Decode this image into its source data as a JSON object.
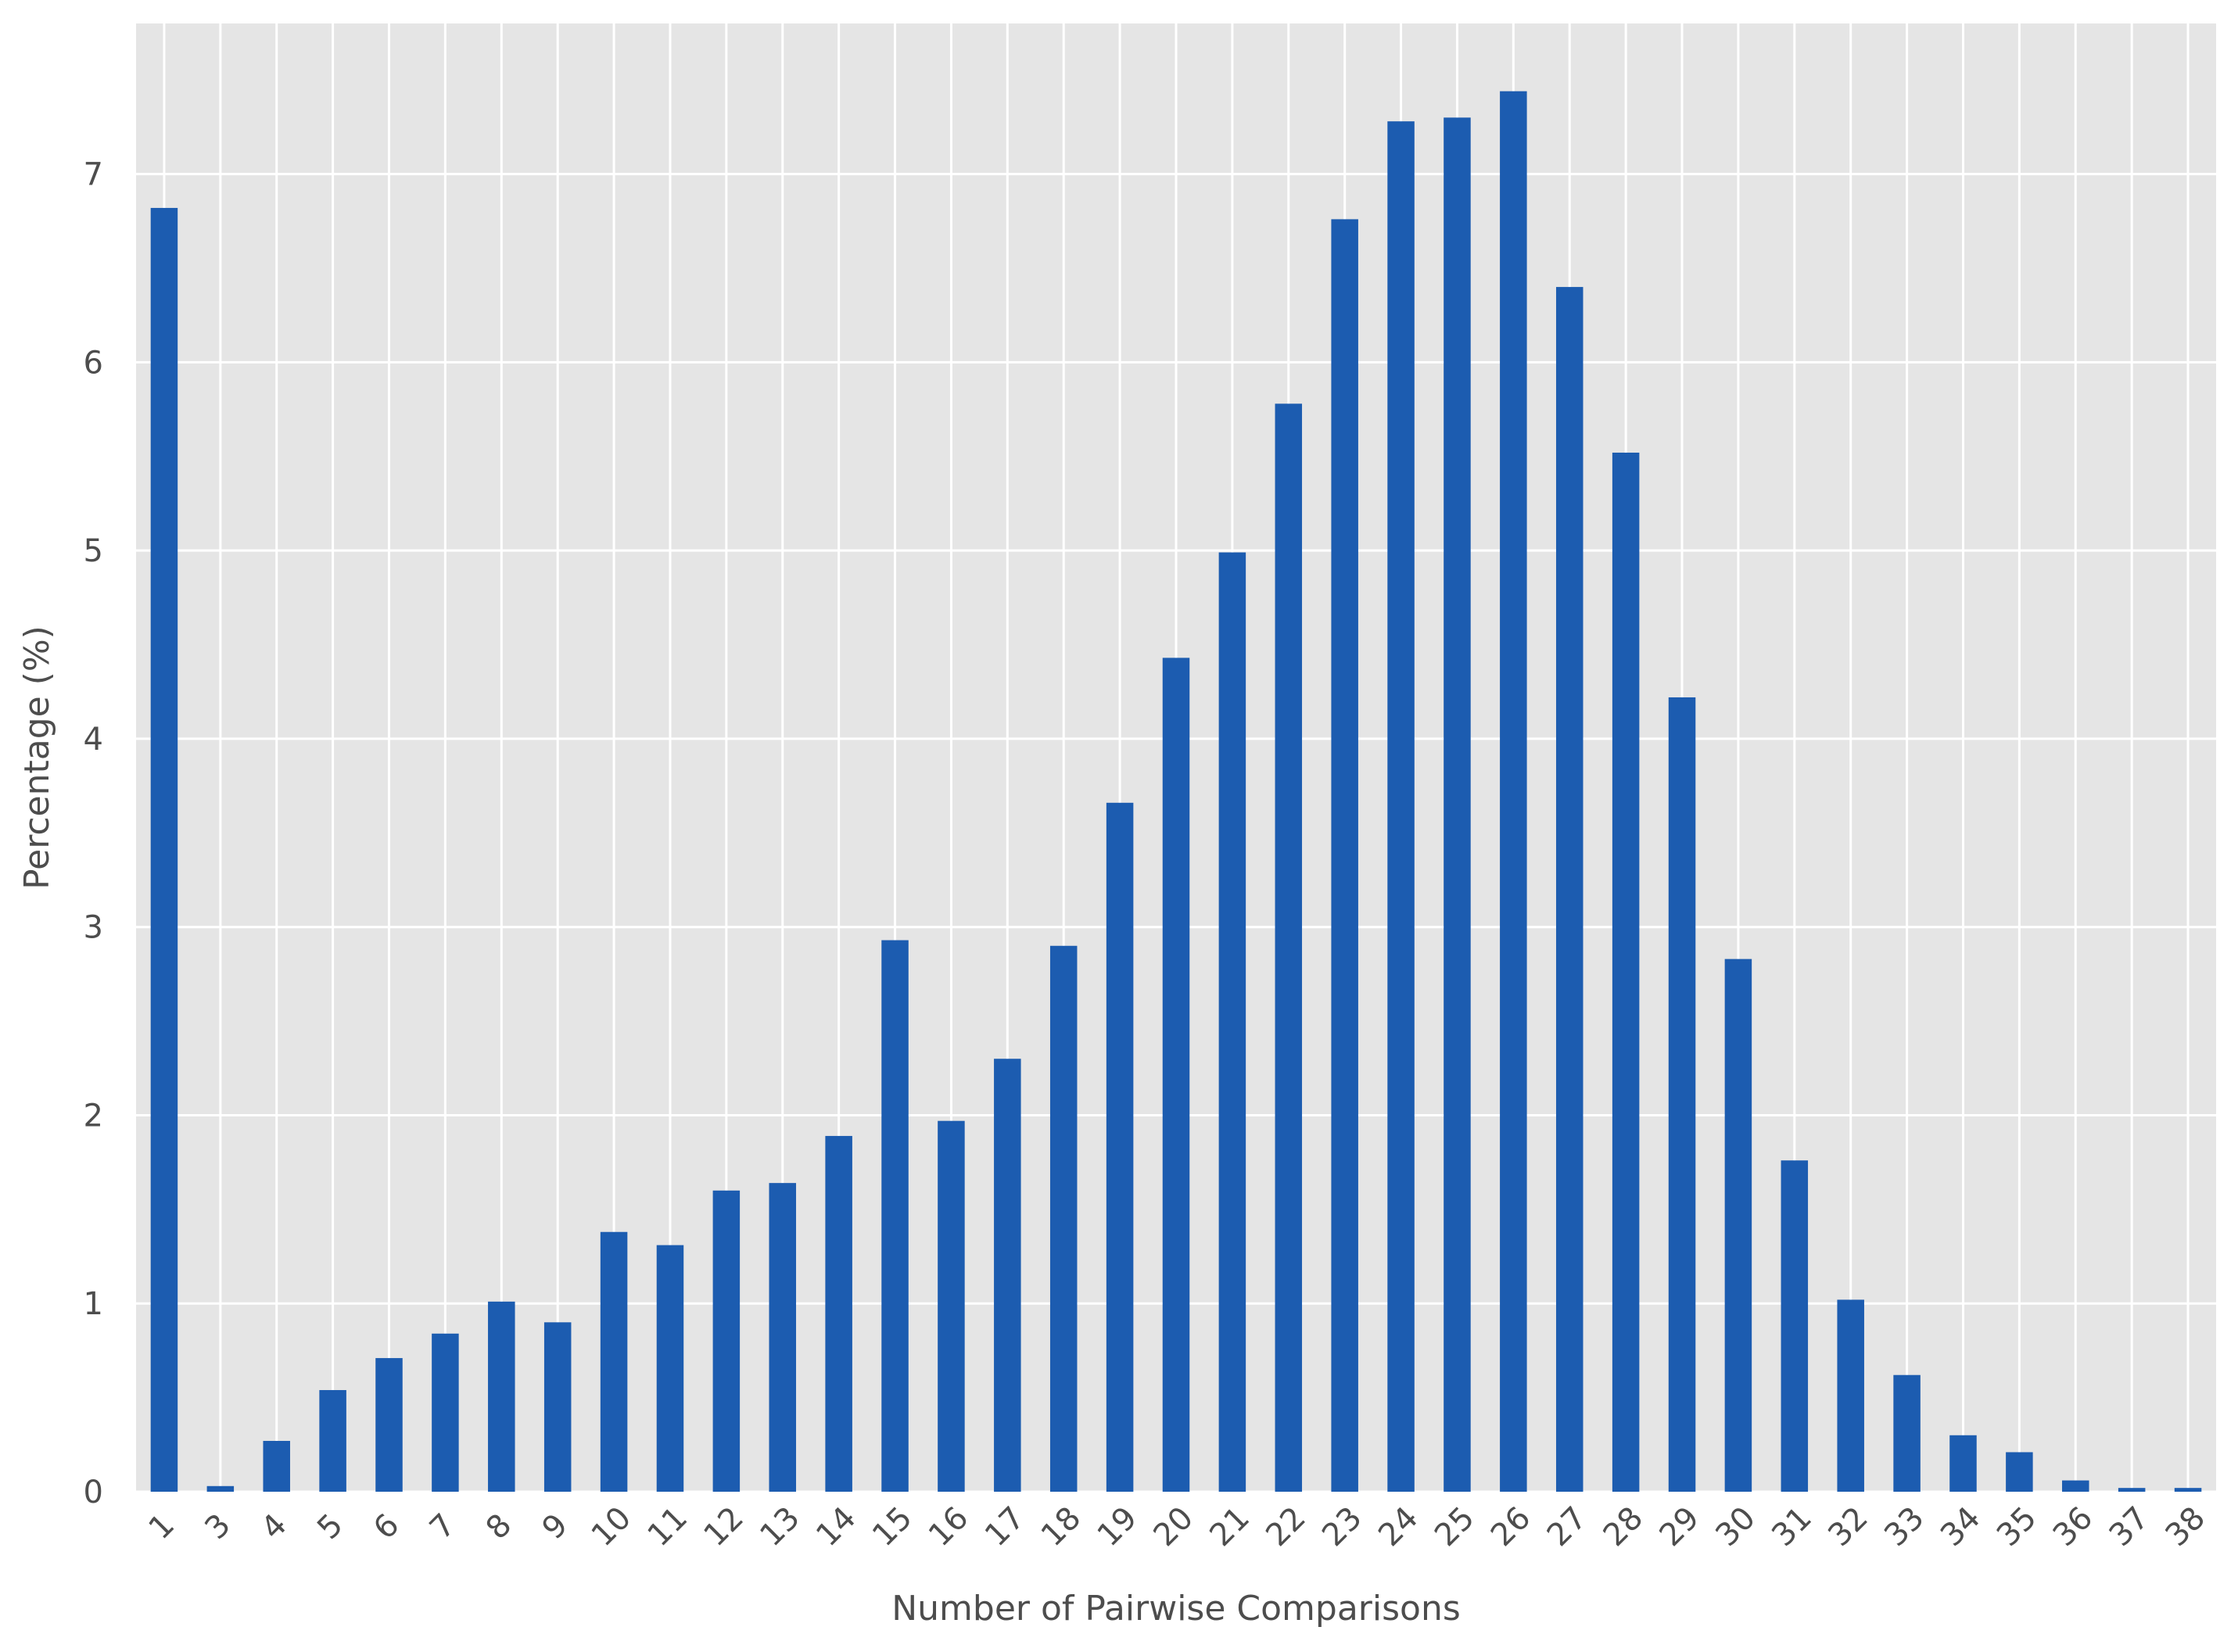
{
  "chart_data": {
    "type": "bar",
    "xlabel": "Number of Pairwise Comparisons",
    "ylabel": "Percentage (%)",
    "categories": [
      "1",
      "3",
      "4",
      "5",
      "6",
      "7",
      "8",
      "9",
      "10",
      "11",
      "12",
      "13",
      "14",
      "15",
      "16",
      "17",
      "18",
      "19",
      "20",
      "21",
      "22",
      "23",
      "24",
      "25",
      "26",
      "27",
      "28",
      "29",
      "30",
      "31",
      "32",
      "33",
      "34",
      "35",
      "36",
      "37",
      "38"
    ],
    "values": [
      6.82,
      0.03,
      0.27,
      0.54,
      0.71,
      0.84,
      1.01,
      0.9,
      1.38,
      1.31,
      1.6,
      1.64,
      1.89,
      2.93,
      1.97,
      2.3,
      2.9,
      3.66,
      4.43,
      4.99,
      5.78,
      6.76,
      7.28,
      7.3,
      7.44,
      6.4,
      5.52,
      4.22,
      2.83,
      1.76,
      1.02,
      0.62,
      0.3,
      0.21,
      0.06,
      0.02,
      0.02
    ],
    "yticks": [
      0,
      1,
      2,
      3,
      4,
      5,
      6,
      7
    ],
    "ylim": [
      0,
      7.8
    ],
    "grid": true,
    "colors": {
      "bar": "#1c5cb0",
      "background": "#e5e5e5",
      "grid": "#ffffff"
    }
  }
}
